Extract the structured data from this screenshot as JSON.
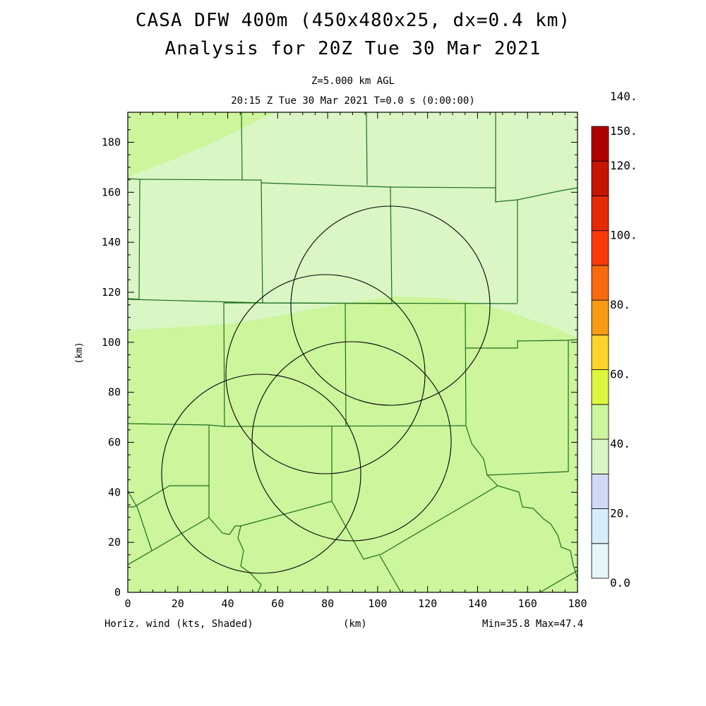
{
  "header": {
    "title": "CASA DFW 400m (450x480x25, dx=0.4 km)",
    "subtitle": "Analysis for 20Z Tue 30 Mar 2021",
    "level": "Z=5.000 km AGL",
    "time": "20:15 Z Tue 30 Mar 2021    T=0.0 s (0:00:00)"
  },
  "axes": {
    "x_ticks": [
      "0",
      "20",
      "40",
      "60",
      "80",
      "100",
      "120",
      "140",
      "160",
      "180"
    ],
    "y_ticks": [
      "0",
      "20",
      "40",
      "60",
      "80",
      "100",
      "120",
      "140",
      "160",
      "180"
    ],
    "ylabel": "(km)",
    "xlabel": "(km)",
    "xlim": [
      0,
      180
    ],
    "ylim": [
      0,
      192
    ]
  },
  "colorbar": {
    "labels": [
      "150.",
      "140.",
      "120.",
      "100.",
      "80.",
      "60.",
      "40.",
      "20.",
      "0.0"
    ],
    "colors": [
      "#e6f6fb",
      "#d6eefa",
      "#d0daf6",
      "#d9f6c4",
      "#ccf59c",
      "#def73c",
      "#fed428",
      "#f99a13",
      "#f86a0c",
      "#fa3a08",
      "#e62a06",
      "#c71403",
      "#af0000"
    ]
  },
  "map": {
    "field_colors": {
      "light": "#d9f6c4",
      "medium": "#ccf59c"
    },
    "county_line_color": "#1e6e1e",
    "range_ring_color": "#000000"
  },
  "footer": {
    "left": "Horiz. wind (kts, Shaded)",
    "center": "(km)",
    "right": "Min=35.8 Max=47.4"
  }
}
